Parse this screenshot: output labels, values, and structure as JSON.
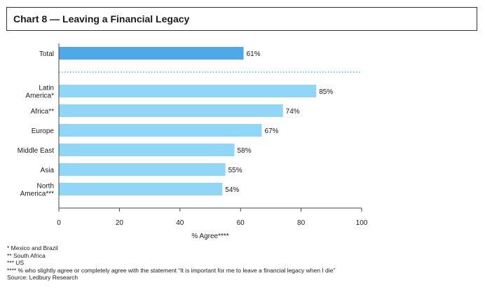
{
  "title": "Chart 8 — Leaving a Financial Legacy",
  "chart_data": {
    "type": "bar",
    "orientation": "horizontal",
    "categories": [
      [
        "Total"
      ],
      [
        "Latin",
        "America*"
      ],
      [
        "Africa**"
      ],
      [
        "Europe"
      ],
      [
        "Middle East"
      ],
      [
        "Asia"
      ],
      [
        "North",
        "America***"
      ]
    ],
    "values": [
      61,
      85,
      74,
      67,
      58,
      55,
      54
    ],
    "value_labels": [
      "61%",
      "85%",
      "74%",
      "67%",
      "58%",
      "55%",
      "54%"
    ],
    "highlight_index": 0,
    "xlim": [
      0,
      100
    ],
    "x_ticks": [
      "0",
      "20",
      "40",
      "60",
      "80",
      "100"
    ],
    "xlabel": "% Agree****",
    "colors": {
      "highlight": "#4ea9e8",
      "bar": "#8fd6f7",
      "separator": "#3aa3dd",
      "axis": "#444444"
    },
    "separator_after_first": true,
    "grid": false
  },
  "footnotes": [
    "* Mexico and Brazil",
    "** South Africa",
    "*** US",
    "**** % who slightly agree or completely agree with the statement “It is important for me to leave a financial legacy when I die”",
    "Source: Ledbury Research"
  ]
}
